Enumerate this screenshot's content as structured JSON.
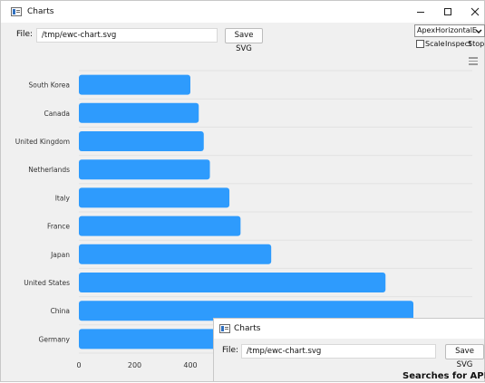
{
  "window": {
    "title": "Charts",
    "minimize_icon": "minimize-icon",
    "maximize_icon": "maximize-icon",
    "close_icon": "close-icon"
  },
  "toolbar": {
    "file_label": "File:",
    "file_path": "/tmp/ewc-chart.svg",
    "save_label": "Save SVG",
    "chart_select_value": "ApexHorizontalE",
    "scale_label": "Scale",
    "scale_checked": false,
    "inspect_label": "Inspect",
    "stop_label": "Stop",
    "menu_icon": "hamburger-menu-icon"
  },
  "chart_data": {
    "type": "bar",
    "orientation": "horizontal",
    "categories": [
      "South Korea",
      "Canada",
      "United Kingdom",
      "Netherlands",
      "Italy",
      "France",
      "Japan",
      "United States",
      "China",
      "Germany"
    ],
    "values": [
      400,
      430,
      448,
      470,
      540,
      580,
      690,
      1100,
      1200,
      1380
    ],
    "x_ticks": [
      "0",
      "200",
      "400"
    ],
    "bar_color": "#2e9bfd",
    "grid": true
  },
  "second_window": {
    "title": "Charts",
    "file_label": "File:",
    "file_path": "/tmp/ewc-chart.svg",
    "save_label": "Save SVG",
    "footer_text": "Searches for APL"
  }
}
